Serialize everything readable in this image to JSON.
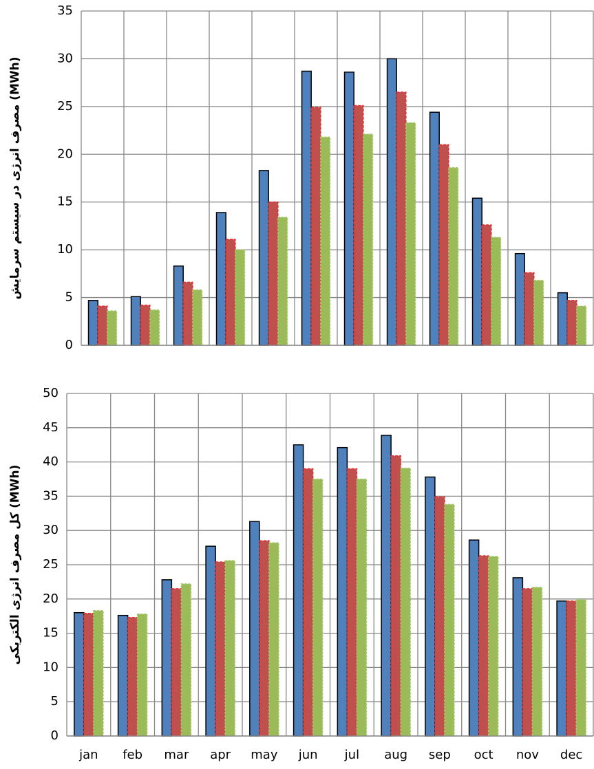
{
  "chart_data": [
    {
      "type": "bar",
      "y_label": "مصرف انرژی در سیستم سرمایش (MWh)",
      "categories": [
        null,
        null,
        null,
        null,
        null,
        null,
        null,
        null,
        null,
        null,
        null,
        null
      ],
      "series": [
        {
          "color": "#4f81bd",
          "values": [
            4.7,
            5.1,
            8.3,
            13.9,
            18.3,
            28.7,
            28.6,
            30.0,
            24.4,
            15.4,
            9.6,
            5.5
          ]
        },
        {
          "color": "#c0504d",
          "values": [
            4.1,
            4.2,
            6.6,
            11.1,
            15.0,
            24.9,
            25.1,
            26.5,
            21.0,
            12.6,
            7.6,
            4.7
          ]
        },
        {
          "color": "#9bbb59",
          "values": [
            3.6,
            3.7,
            5.8,
            10.0,
            13.4,
            21.8,
            22.1,
            23.3,
            18.6,
            11.3,
            6.8,
            4.1
          ]
        }
      ],
      "ylim": [
        0,
        35
      ],
      "yticks": [
        0,
        5,
        10,
        15,
        20,
        25,
        30,
        35
      ],
      "grid": true
    },
    {
      "type": "bar",
      "y_label": "کل مصرف انرژی الکتریکی (MWh)",
      "categories": [
        "jan",
        "feb",
        "mar",
        "apr",
        "may",
        "jun",
        "jul",
        "aug",
        "sep",
        "oct",
        "nov",
        "dec"
      ],
      "series": [
        {
          "color": "#4f81bd",
          "values": [
            18.0,
            17.6,
            22.8,
            27.7,
            31.3,
            42.5,
            42.1,
            43.9,
            37.8,
            28.6,
            23.1,
            19.7
          ]
        },
        {
          "color": "#c0504d",
          "values": [
            17.9,
            17.3,
            21.5,
            25.4,
            28.5,
            39.0,
            39.0,
            40.9,
            34.9,
            26.3,
            21.5,
            19.7
          ]
        },
        {
          "color": "#9bbb59",
          "values": [
            18.3,
            17.8,
            22.2,
            25.6,
            28.2,
            37.5,
            37.5,
            39.1,
            33.8,
            26.2,
            21.7,
            19.9
          ]
        }
      ],
      "ylim": [
        0,
        50
      ],
      "yticks": [
        0,
        5,
        10,
        15,
        20,
        25,
        30,
        35,
        40,
        45,
        50
      ],
      "grid": true
    }
  ]
}
